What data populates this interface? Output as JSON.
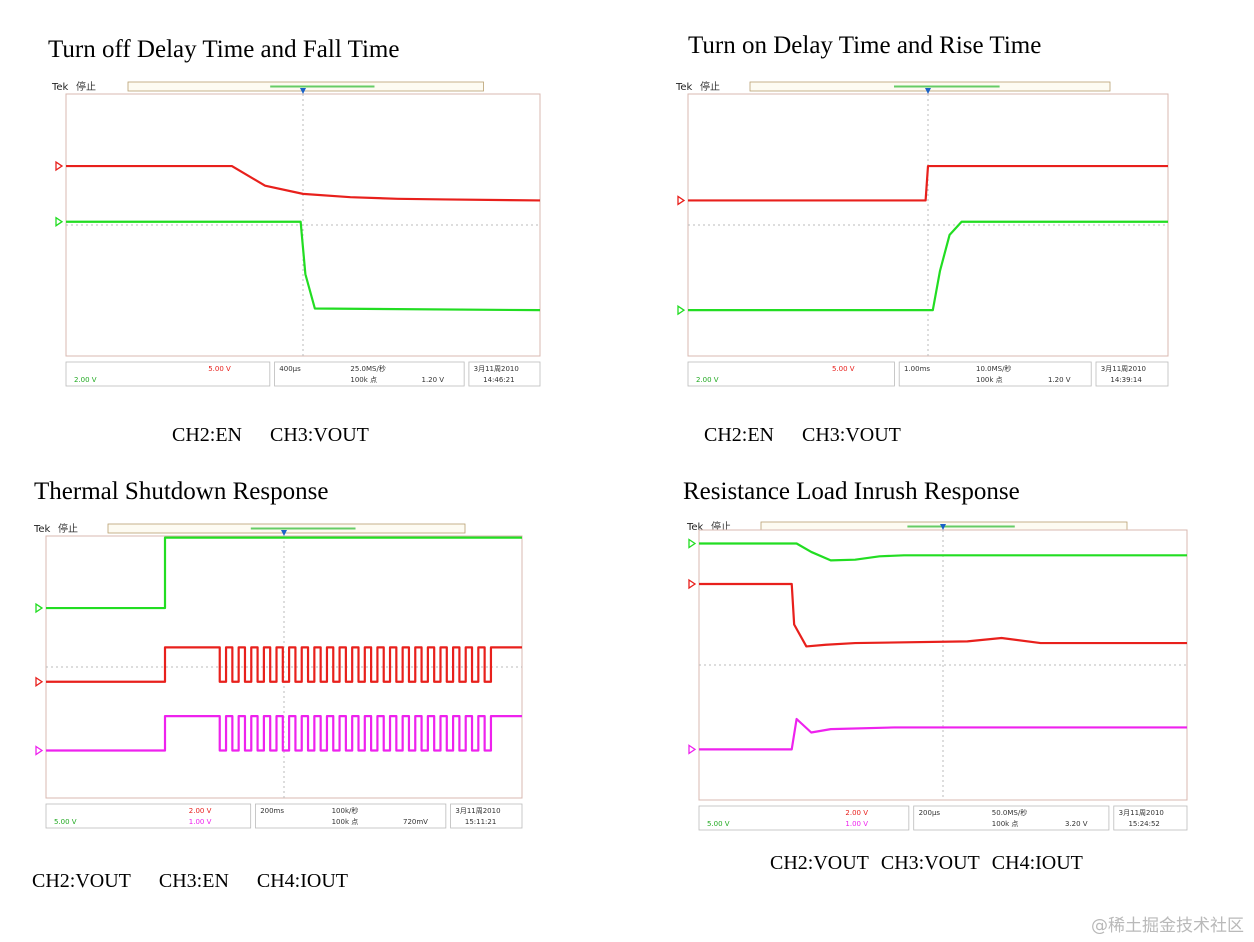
{
  "panels": [
    {
      "title": "Turn off Delay Time and Fall Time",
      "captions": [
        "CH2:EN",
        "CH3:VOUT"
      ],
      "brand": "Tek",
      "state": "停止",
      "scope_readout": {
        "left_top": "5.00 V",
        "left_bottom": "2.00 V",
        "mid_a": "400μs",
        "mid_b": "25.0MS/秒",
        "mid_c": "100k 点",
        "trig_val": "1.20 V",
        "date": "3月11周2010",
        "time": "14:46:21"
      }
    },
    {
      "title": "Turn on Delay Time and Rise Time",
      "captions": [
        "CH2:EN",
        "CH3:VOUT"
      ],
      "brand": "Tek",
      "state": "停止",
      "scope_readout": {
        "left_top": "5.00 V",
        "left_bottom": "2.00 V",
        "mid_a": "1.00ms",
        "mid_b": "10.0MS/秒",
        "mid_c": "100k 点",
        "trig_val": "1.20 V",
        "date": "3月11周2010",
        "time": "14:39:14"
      }
    },
    {
      "title": "Thermal Shutdown Response",
      "captions": [
        "CH2:VOUT",
        "CH3:EN",
        "CH4:IOUT"
      ],
      "brand": "Tek",
      "state": "停止",
      "scope_readout": {
        "left_top": "2.00 V",
        "left_mid": "1.00 V",
        "left_bottom": "5.00 V",
        "mid_a": "200ms",
        "mid_b": "100k/秒",
        "mid_c": "100k 点",
        "trig_val": "720mV",
        "date": "3月11周2010",
        "time": "15:11:21"
      }
    },
    {
      "title": "Resistance Load Inrush Response",
      "captions": [
        "CH2:VOUT",
        "CH3:VOUT",
        "CH4:IOUT"
      ],
      "brand": "Tek",
      "state": "停止",
      "scope_readout": {
        "left_top": "2.00 V",
        "left_mid": "1.00 V",
        "left_bottom": "5.00 V",
        "mid_a": "200μs",
        "mid_b": "50.0MS/秒",
        "mid_c": "100k 点",
        "trig_val": "3.20 V",
        "date": "3月11周2010",
        "time": "15:24:52"
      }
    }
  ],
  "chart_data": [
    {
      "type": "line",
      "title": "Turn off Delay Time and Fall Time",
      "xlim": [
        0,
        10
      ],
      "ylim": [
        0,
        8
      ],
      "series": [
        {
          "name": "CH2:EN",
          "color": "#e8201c",
          "x": [
            0,
            3.5,
            4.2,
            5,
            6,
            7,
            8,
            10
          ],
          "y": [
            5.8,
            5.8,
            5.2,
            4.95,
            4.85,
            4.8,
            4.78,
            4.75
          ]
        },
        {
          "name": "CH3:VOUT",
          "color": "#22dd22",
          "x": [
            0,
            4.95,
            5.05,
            5.25,
            10
          ],
          "y": [
            4.1,
            4.1,
            2.5,
            1.45,
            1.4
          ]
        }
      ]
    },
    {
      "type": "line",
      "title": "Turn on Delay Time and Rise Time",
      "xlim": [
        0,
        10
      ],
      "ylim": [
        0,
        8
      ],
      "series": [
        {
          "name": "CH2:EN",
          "color": "#e8201c",
          "x": [
            0,
            4.95,
            5.0,
            10
          ],
          "y": [
            4.75,
            4.75,
            5.8,
            5.8
          ]
        },
        {
          "name": "CH3:VOUT",
          "color": "#22dd22",
          "x": [
            0,
            5.1,
            5.25,
            5.45,
            5.7,
            10
          ],
          "y": [
            1.4,
            1.4,
            2.6,
            3.7,
            4.1,
            4.1
          ]
        }
      ]
    },
    {
      "type": "line",
      "title": "Thermal Shutdown Response",
      "xlim": [
        0,
        10
      ],
      "ylim": [
        0,
        8
      ],
      "series": [
        {
          "name": "CH2:VOUT",
          "color": "#22dd22",
          "x": [
            0,
            2.5,
            2.5,
            10
          ],
          "y": [
            5.8,
            5.8,
            7.95,
            7.95
          ]
        },
        {
          "name": "CH3:EN",
          "color": "#e8201c",
          "pulse": true,
          "high": 4.6,
          "low": 3.55,
          "step_at": 2.5,
          "burst_start": 3.65,
          "burst_end": 9.65,
          "period": 0.265
        },
        {
          "name": "CH4:IOUT",
          "color": "#ee22ee",
          "pulse": true,
          "high": 2.5,
          "low": 1.45,
          "step_at": 2.5,
          "burst_start": 3.65,
          "burst_end": 9.65,
          "period": 0.265
        }
      ]
    },
    {
      "type": "line",
      "title": "Resistance Load Inrush Response",
      "xlim": [
        0,
        10
      ],
      "ylim": [
        0,
        8
      ],
      "series": [
        {
          "name": "CH2:VOUT",
          "color": "#22dd22",
          "x": [
            0,
            2.0,
            2.3,
            2.7,
            3.2,
            3.7,
            4.2,
            10
          ],
          "y": [
            7.6,
            7.6,
            7.35,
            7.1,
            7.12,
            7.22,
            7.25,
            7.25
          ]
        },
        {
          "name": "CH3:VOUT",
          "color": "#e8201c",
          "x": [
            0,
            1.9,
            1.95,
            2.2,
            2.6,
            3.2,
            5.5,
            6.2,
            7,
            10
          ],
          "y": [
            6.4,
            6.4,
            5.2,
            4.55,
            4.6,
            4.65,
            4.7,
            4.8,
            4.65,
            4.65
          ]
        },
        {
          "name": "CH4:IOUT",
          "color": "#ee22ee",
          "x": [
            0,
            1.9,
            2.0,
            2.3,
            2.7,
            4,
            10
          ],
          "y": [
            1.5,
            1.5,
            2.4,
            2.0,
            2.1,
            2.15,
            2.15
          ]
        }
      ]
    }
  ],
  "watermark": "@稀土掘金技术社区"
}
